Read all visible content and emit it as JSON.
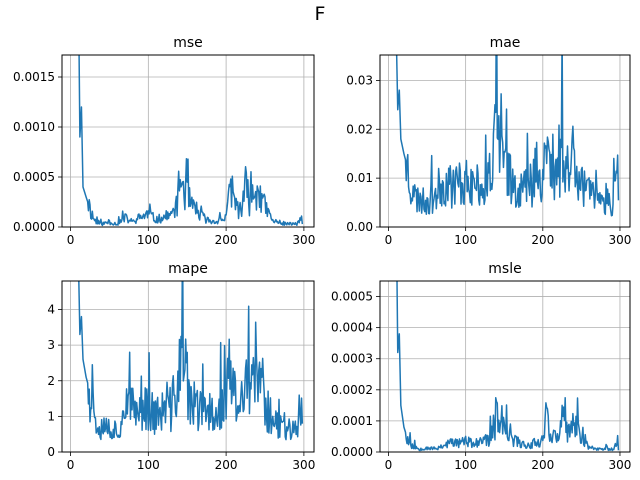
{
  "figure": {
    "suptitle": "F"
  },
  "chart_data": [
    {
      "type": "line",
      "title": "mse",
      "xlabel": "",
      "ylabel": "",
      "xlim": [
        -11,
        313
      ],
      "ylim": [
        0,
        0.00172
      ],
      "xticks": [
        0,
        100,
        200,
        300
      ],
      "xtick_labels": [
        "0",
        "100",
        "200",
        "300"
      ],
      "yticks": [
        0,
        0.0005,
        0.001,
        0.0015
      ],
      "ytick_labels": [
        "0.0000",
        "0.0005",
        "0.0010",
        "0.0015"
      ],
      "grid": true,
      "color": "#1f77b4",
      "key_points": [
        [
          10,
          0.0025
        ],
        [
          12,
          0.0009
        ],
        [
          14,
          0.0012
        ],
        [
          16,
          0.0004
        ],
        [
          20,
          0.0003
        ],
        [
          25,
          0.00018
        ],
        [
          30,
          8e-05
        ],
        [
          35,
          4e-05
        ],
        [
          40,
          3e-05
        ],
        [
          50,
          5e-05
        ],
        [
          60,
          3e-05
        ],
        [
          70,
          9e-05
        ],
        [
          80,
          5e-05
        ],
        [
          90,
          0.0001
        ],
        [
          100,
          0.00013
        ],
        [
          110,
          7e-05
        ],
        [
          120,
          0.0001
        ],
        [
          130,
          0.00012
        ],
        [
          138,
          0.00025
        ],
        [
          140,
          0.0005
        ],
        [
          145,
          0.0004
        ],
        [
          150,
          0.0003
        ],
        [
          160,
          0.00015
        ],
        [
          170,
          0.0001
        ],
        [
          180,
          5e-05
        ],
        [
          190,
          6e-05
        ],
        [
          200,
          0.0001
        ],
        [
          207,
          0.00042
        ],
        [
          212,
          0.00022
        ],
        [
          220,
          0.00015
        ],
        [
          225,
          0.0004
        ],
        [
          230,
          0.00025
        ],
        [
          240,
          0.00038
        ],
        [
          245,
          0.0003
        ],
        [
          250,
          0.0002
        ],
        [
          260,
          6e-05
        ],
        [
          270,
          4e-05
        ],
        [
          280,
          3e-05
        ],
        [
          290,
          3e-05
        ],
        [
          297,
          8e-05
        ],
        [
          298,
          2e-05
        ]
      ],
      "seed": 11
    },
    {
      "type": "line",
      "title": "mae",
      "xlabel": "",
      "ylabel": "",
      "xlim": [
        -11,
        313
      ],
      "ylim": [
        0,
        0.0352
      ],
      "xticks": [
        0,
        100,
        200,
        300
      ],
      "xtick_labels": [
        "0",
        "100",
        "200",
        "300"
      ],
      "yticks": [
        0,
        0.01,
        0.02,
        0.03
      ],
      "ytick_labels": [
        "0.00",
        "0.01",
        "0.02",
        "0.03"
      ],
      "grid": true,
      "color": "#1f77b4",
      "key_points": [
        [
          10,
          0.04
        ],
        [
          12,
          0.024
        ],
        [
          14,
          0.028
        ],
        [
          16,
          0.018
        ],
        [
          20,
          0.015
        ],
        [
          25,
          0.012
        ],
        [
          30,
          0.008
        ],
        [
          35,
          0.006
        ],
        [
          40,
          0.0055
        ],
        [
          50,
          0.005
        ],
        [
          60,
          0.0065
        ],
        [
          70,
          0.009
        ],
        [
          80,
          0.0085
        ],
        [
          90,
          0.009
        ],
        [
          100,
          0.0095
        ],
        [
          110,
          0.008
        ],
        [
          120,
          0.0085
        ],
        [
          130,
          0.01
        ],
        [
          135,
          0.0125
        ],
        [
          140,
          0.021
        ],
        [
          145,
          0.012
        ],
        [
          150,
          0.0135
        ],
        [
          160,
          0.0095
        ],
        [
          170,
          0.008
        ],
        [
          180,
          0.0085
        ],
        [
          190,
          0.0095
        ],
        [
          200,
          0.0105
        ],
        [
          205,
          0.018
        ],
        [
          210,
          0.0115
        ],
        [
          220,
          0.0095
        ],
        [
          225,
          0.0175
        ],
        [
          230,
          0.0115
        ],
        [
          240,
          0.0155
        ],
        [
          250,
          0.0095
        ],
        [
          260,
          0.0065
        ],
        [
          270,
          0.0055
        ],
        [
          280,
          0.0055
        ],
        [
          290,
          0.005
        ],
        [
          297,
          0.0085
        ],
        [
          298,
          0.0045
        ]
      ],
      "seed": 23
    },
    {
      "type": "line",
      "title": "mape",
      "xlabel": "",
      "ylabel": "",
      "xlim": [
        -11,
        313
      ],
      "ylim": [
        0,
        4.8
      ],
      "xticks": [
        0,
        100,
        200,
        300
      ],
      "xtick_labels": [
        "0",
        "100",
        "200",
        "300"
      ],
      "yticks": [
        0,
        1,
        2,
        3,
        4
      ],
      "ytick_labels": [
        "0",
        "1",
        "2",
        "3",
        "4"
      ],
      "grid": true,
      "color": "#1f77b4",
      "key_points": [
        [
          10,
          5.5
        ],
        [
          12,
          3.3
        ],
        [
          14,
          3.8
        ],
        [
          16,
          2.6
        ],
        [
          20,
          2.1
        ],
        [
          25,
          1.7
        ],
        [
          30,
          1.2
        ],
        [
          35,
          0.8
        ],
        [
          40,
          0.75
        ],
        [
          50,
          0.7
        ],
        [
          60,
          0.6
        ],
        [
          70,
          1.2
        ],
        [
          80,
          1.2
        ],
        [
          90,
          1.15
        ],
        [
          100,
          1.3
        ],
        [
          110,
          1.0
        ],
        [
          120,
          1.15
        ],
        [
          130,
          1.2
        ],
        [
          140,
          2.3
        ],
        [
          145,
          2.8
        ],
        [
          150,
          1.6
        ],
        [
          160,
          1.25
        ],
        [
          170,
          1.1
        ],
        [
          180,
          1.1
        ],
        [
          190,
          1.2
        ],
        [
          200,
          1.4
        ],
        [
          205,
          2.6
        ],
        [
          210,
          1.5
        ],
        [
          220,
          1.3
        ],
        [
          225,
          2.4
        ],
        [
          230,
          1.5
        ],
        [
          240,
          2.1
        ],
        [
          250,
          1.35
        ],
        [
          260,
          0.85
        ],
        [
          270,
          0.75
        ],
        [
          280,
          0.75
        ],
        [
          290,
          0.7
        ],
        [
          297,
          1.3
        ],
        [
          298,
          0.55
        ]
      ],
      "seed": 37
    },
    {
      "type": "line",
      "title": "msle",
      "xlabel": "",
      "ylabel": "",
      "xlim": [
        -11,
        313
      ],
      "ylim": [
        0,
        0.00055
      ],
      "xticks": [
        0,
        100,
        200,
        300
      ],
      "xtick_labels": [
        "0",
        "100",
        "200",
        "300"
      ],
      "yticks": [
        0,
        0.0001,
        0.0002,
        0.0003,
        0.0004,
        0.0005
      ],
      "ytick_labels": [
        "0.0000",
        "0.0001",
        "0.0002",
        "0.0003",
        "0.0004",
        "0.0005"
      ],
      "grid": true,
      "color": "#1f77b4",
      "key_points": [
        [
          10,
          0.0008
        ],
        [
          12,
          0.00032
        ],
        [
          14,
          0.00038
        ],
        [
          16,
          0.00015
        ],
        [
          20,
          8e-05
        ],
        [
          25,
          4e-05
        ],
        [
          30,
          2e-05
        ],
        [
          40,
          1e-05
        ],
        [
          50,
          1.5e-05
        ],
        [
          60,
          1e-05
        ],
        [
          70,
          2e-05
        ],
        [
          80,
          3e-05
        ],
        [
          90,
          3e-05
        ],
        [
          100,
          3.5e-05
        ],
        [
          110,
          2.5e-05
        ],
        [
          120,
          3e-05
        ],
        [
          130,
          4e-05
        ],
        [
          138,
          7e-05
        ],
        [
          140,
          0.00012
        ],
        [
          145,
          8e-05
        ],
        [
          150,
          7e-05
        ],
        [
          160,
          4e-05
        ],
        [
          170,
          3e-05
        ],
        [
          180,
          2e-05
        ],
        [
          190,
          3e-05
        ],
        [
          200,
          4e-05
        ],
        [
          205,
          0.00013
        ],
        [
          210,
          6e-05
        ],
        [
          220,
          4e-05
        ],
        [
          225,
          0.00012
        ],
        [
          230,
          6e-05
        ],
        [
          240,
          9e-05
        ],
        [
          250,
          5e-05
        ],
        [
          260,
          1.5e-05
        ],
        [
          270,
          1e-05
        ],
        [
          280,
          1e-05
        ],
        [
          290,
          1e-05
        ],
        [
          297,
          3e-05
        ],
        [
          298,
          5e-06
        ]
      ],
      "seed": 53
    }
  ]
}
